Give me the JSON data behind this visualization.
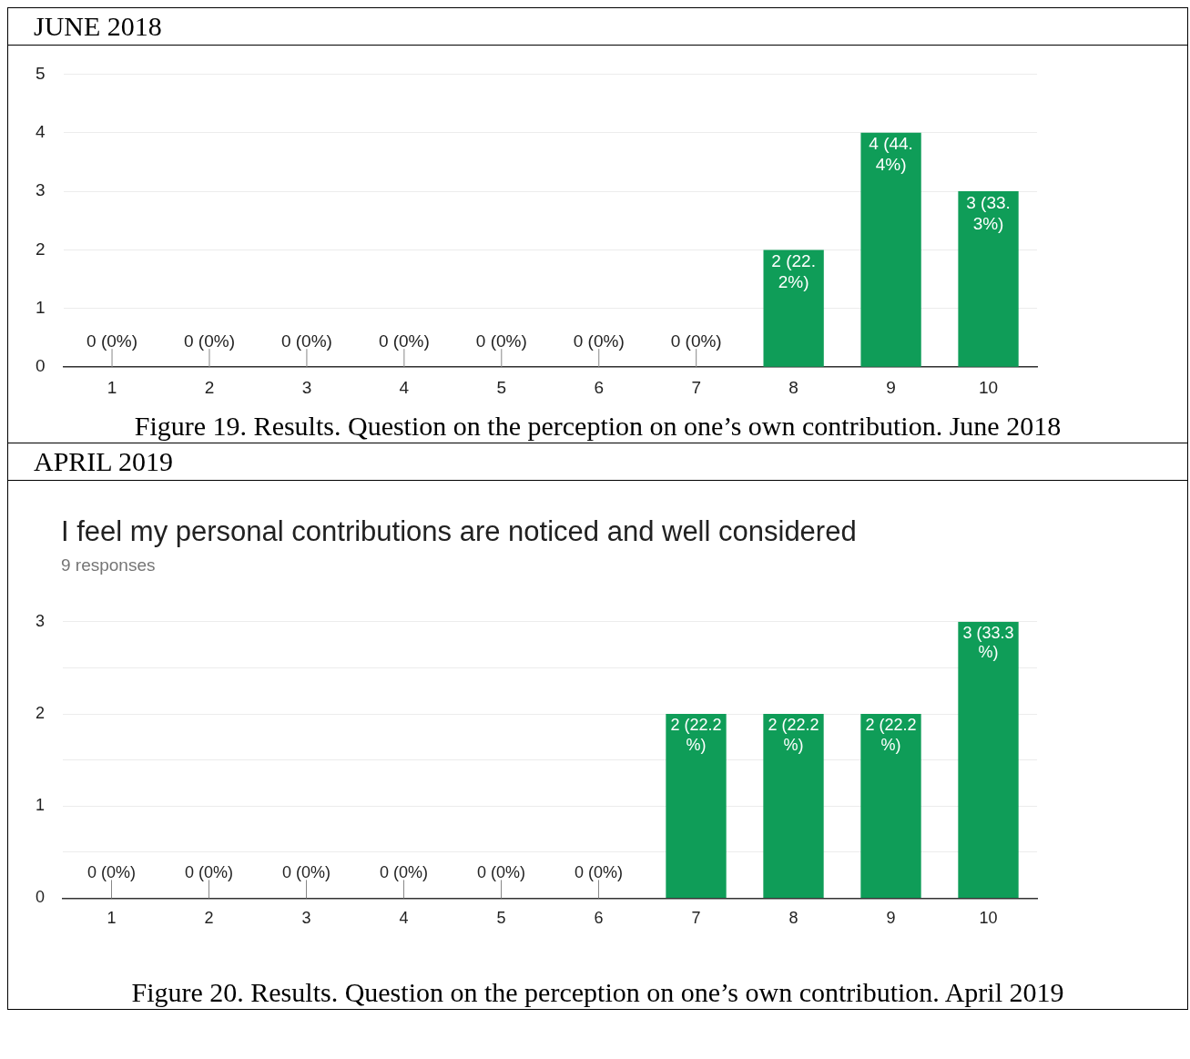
{
  "chart_data": [
    {
      "type": "bar",
      "title": "JUNE 2018",
      "categories": [
        "1",
        "2",
        "3",
        "4",
        "5",
        "6",
        "7",
        "8",
        "9",
        "10"
      ],
      "values": [
        0,
        0,
        0,
        0,
        0,
        0,
        0,
        2,
        4,
        3
      ],
      "color": "#0f9d58",
      "value_labels": [
        "0 (0%)",
        "0 (0%)",
        "0 (0%)",
        "0 (0%)",
        "0 (0%)",
        "0 (0%)",
        "0 (0%)",
        "2 (22.2%)",
        "4 (44.4%)",
        "3 (33.3%)"
      ],
      "ylim": [
        0,
        5
      ],
      "yticks": [
        0,
        1,
        2,
        3,
        4,
        5
      ],
      "grid": "y",
      "annotations": [
        "Figure 19. Results. Question on the perception on one’s own contribution. June 2018"
      ]
    },
    {
      "type": "bar",
      "title": "I feel my personal contributions are noticed and well considered",
      "subtitle": "9 responses",
      "categories": [
        "1",
        "2",
        "3",
        "4",
        "5",
        "6",
        "7",
        "8",
        "9",
        "10"
      ],
      "values": [
        0,
        0,
        0,
        0,
        0,
        0,
        2,
        2,
        2,
        3
      ],
      "color": "#0f9d58",
      "value_labels": [
        "0 (0%)",
        "0 (0%)",
        "0 (0%)",
        "0 (0%)",
        "0 (0%)",
        "0 (0%)",
        "2 (22.2%)",
        "2 (22.2%)",
        "2 (22.2%)",
        "3 (33.3%)"
      ],
      "ylim": [
        0,
        3
      ],
      "yticks": [
        0,
        {
          "value": 0.5,
          "label": null
        },
        1,
        {
          "value": 1.5,
          "label": null
        },
        2,
        {
          "value": 2.5,
          "label": null
        },
        3
      ],
      "grid": "y",
      "annotations": [
        "APRIL 2019",
        "Figure 20. Results. Question on the perception on one’s own contribution. April 2019"
      ]
    }
  ]
}
